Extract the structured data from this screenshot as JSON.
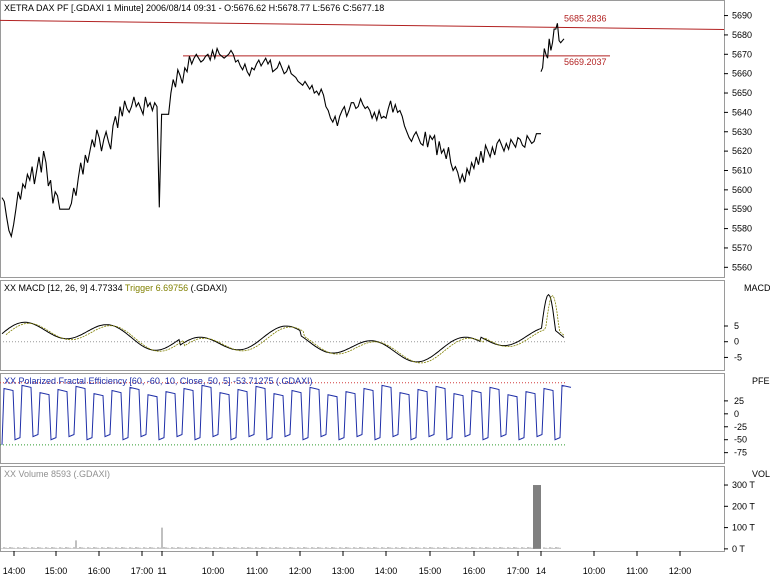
{
  "chart_data": [
    {
      "type": "line",
      "panel": "price",
      "title": "XETRA DAX PF [.GDAXI  1 Minute]  2006/08/14 09:31  - O:5676.62 H:5678.77 L:5676 C:5677.18",
      "y_ticks": [
        "5690",
        "5680",
        "5670",
        "5660",
        "5650",
        "5640",
        "5630",
        "5620",
        "5610",
        "5600",
        "5590",
        "5580",
        "5570",
        "5560"
      ],
      "ylim": [
        5555,
        5697
      ],
      "annotations": [
        {
          "label": "5685.2836",
          "value": 5685.2836,
          "color": "#b22222"
        },
        {
          "label": "5669.2037",
          "value": 5669.2037,
          "color": "#b22222"
        }
      ],
      "series": [
        {
          "values": [
            5596,
            5594,
            5586,
            5579,
            5576,
            5582,
            5590,
            5599,
            5595,
            5603,
            5601,
            5608,
            5605,
            5612,
            5603,
            5610,
            5617,
            5609,
            5620,
            5614,
            5602,
            5605,
            5593,
            5599,
            5597,
            5590,
            5590,
            5590,
            5590,
            5590,
            5593,
            5601,
            5597,
            5606,
            5614,
            5608,
            5618,
            5614,
            5620,
            5626,
            5622,
            5631,
            5627,
            5620,
            5626,
            5630,
            5625,
            5621,
            5633,
            5638,
            5632,
            5643,
            5638,
            5646,
            5642,
            5640,
            5643,
            5648,
            5643,
            5645,
            5642,
            5639,
            5648,
            5643,
            5645,
            5641,
            5645,
            5643,
            5591,
            5639,
            5639,
            5639,
            5639,
            5650,
            5657,
            5653,
            5662,
            5659,
            5655,
            5663,
            5661,
            5669,
            5665,
            5668,
            5670,
            5668,
            5666,
            5667,
            5669,
            5670,
            5667,
            5672,
            5668,
            5673,
            5670,
            5669,
            5668,
            5669,
            5670,
            5672,
            5670,
            5666,
            5667,
            5664,
            5662,
            5665,
            5661,
            5659,
            5663,
            5662,
            5665,
            5667,
            5664,
            5666,
            5668,
            5665,
            5667,
            5661,
            5662,
            5663,
            5666,
            5663,
            5660,
            5661,
            5664,
            5660,
            5659,
            5658,
            5656,
            5655,
            5654,
            5656,
            5654,
            5652,
            5654,
            5650,
            5651,
            5649,
            5652,
            5649,
            5643,
            5641,
            5637,
            5635,
            5638,
            5633,
            5638,
            5641,
            5643,
            5638,
            5641,
            5645,
            5645,
            5642,
            5643,
            5647,
            5644,
            5642,
            5643,
            5641,
            5637,
            5640,
            5636,
            5641,
            5637,
            5638,
            5637,
            5642,
            5646,
            5640,
            5644,
            5640,
            5641,
            5638,
            5633,
            5630,
            5627,
            5625,
            5628,
            5630,
            5627,
            5624,
            5623,
            5630,
            5622,
            5628,
            5626,
            5628,
            5618,
            5625,
            5619,
            5621,
            5616,
            5622,
            5614,
            5610,
            5612,
            5609,
            5604,
            5608,
            5604,
            5611,
            5608,
            5614,
            5611,
            5617,
            5613,
            5620,
            5614,
            5623,
            5620,
            5617,
            5622,
            5618,
            5624,
            5626,
            5623,
            5620,
            5624,
            5621,
            5626,
            5624,
            5622,
            5627,
            5626,
            5623,
            5622,
            5628,
            5626,
            5624,
            5625,
            5629,
            5629,
            5629
          ]
        },
        {
          "values": [
            5661,
            5663,
            5673,
            5670,
            5668,
            5678,
            5672,
            5676,
            5683,
            5683,
            5686,
            5677,
            5676,
            5677,
            5678
          ]
        }
      ],
      "x_ticks": [
        "14:00",
        "15:00",
        "16:00",
        "17:00",
        "11",
        "10:00",
        "11:00",
        "12:00",
        "13:00",
        "14:00",
        "15:00",
        "16:00",
        "17:00",
        "14",
        "10:00",
        "11:00",
        "12:00"
      ]
    },
    {
      "type": "line",
      "panel": "macd",
      "label_prefix": "XX MACD [12, 26, 9] 4.77334 ",
      "trigger_label": "Trigger 6.69756",
      "label_suffix": " (.GDAXI)",
      "axis_title": "MACD",
      "y_ticks": [
        "5",
        "0",
        "-5"
      ],
      "ylim": [
        -9,
        19
      ]
    },
    {
      "type": "line",
      "panel": "pfe",
      "label": "XX Polarized Fractal Efficiency [60, -60, 10, Close, 50, 5] -53.71275 (.GDAXI)",
      "axis_title": "PFE",
      "y_ticks": [
        "25",
        "0",
        "-25",
        "-50",
        "-75"
      ],
      "levels": [
        60,
        -60
      ],
      "ylim": [
        -95,
        75
      ]
    },
    {
      "type": "bar",
      "panel": "volume",
      "label": "XX Volume 8593 (.GDAXI)",
      "axis_title": "VOL",
      "y_ticks": [
        "300 T",
        "200 T",
        "100 T",
        "0 T"
      ],
      "ylim": [
        -10,
        380
      ]
    }
  ],
  "colors": {
    "price_line": "#000000",
    "resistance": "#b22222",
    "macd": "#000000",
    "trigger": "#808000",
    "pfe": "#1f2fa8",
    "volume": "#808080",
    "upper_level": "#d23c3c",
    "lower_level": "#2e9b2e"
  }
}
